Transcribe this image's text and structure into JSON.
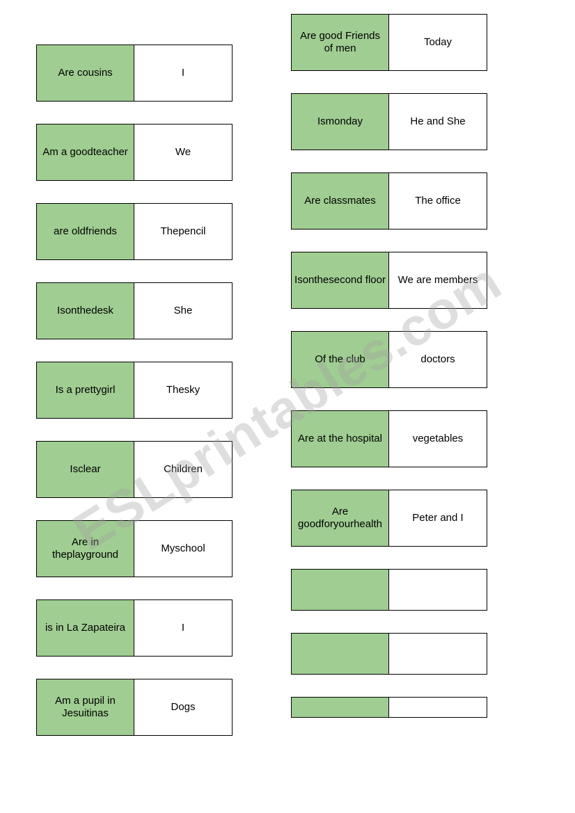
{
  "watermark": "ESLprintables.com",
  "columns": {
    "left": [
      {
        "l": "Are cousins",
        "r": "I"
      },
      {
        "l": "Am a goodteacher",
        "r": "We"
      },
      {
        "l": "are oldfriends",
        "r": "Thepencil"
      },
      {
        "l": "Isonthedesk",
        "r": "She"
      },
      {
        "l": "Is a prettygirl",
        "r": "Thesky"
      },
      {
        "l": "Isclear",
        "r": "Children"
      },
      {
        "l": "Are in theplayground",
        "r": "Myschool"
      },
      {
        "l": "is in La Zapateira",
        "r": "I"
      },
      {
        "l": "Am a pupil in Jesuitinas",
        "r": "Dogs"
      }
    ],
    "right": [
      {
        "l": "Are good Friends of men",
        "r": "Today"
      },
      {
        "l": "Ismonday",
        "r": "He and She"
      },
      {
        "l": "Are classmates",
        "r": "The office"
      },
      {
        "l": "Isonthesecond floor",
        "r": "We are members"
      },
      {
        "l": "Of the club",
        "r": "doctors"
      },
      {
        "l": "Are at the hospital",
        "r": "vegetables"
      },
      {
        "l": "Are goodforyourhealth",
        "r": "Peter and I"
      },
      {
        "l": "",
        "r": ""
      },
      {
        "l": "",
        "r": ""
      },
      {
        "l": "",
        "r": ""
      }
    ]
  },
  "right_col_heights": [
    "std",
    "std",
    "std",
    "std",
    "std",
    "std",
    "std",
    "small",
    "small",
    "tiny"
  ]
}
